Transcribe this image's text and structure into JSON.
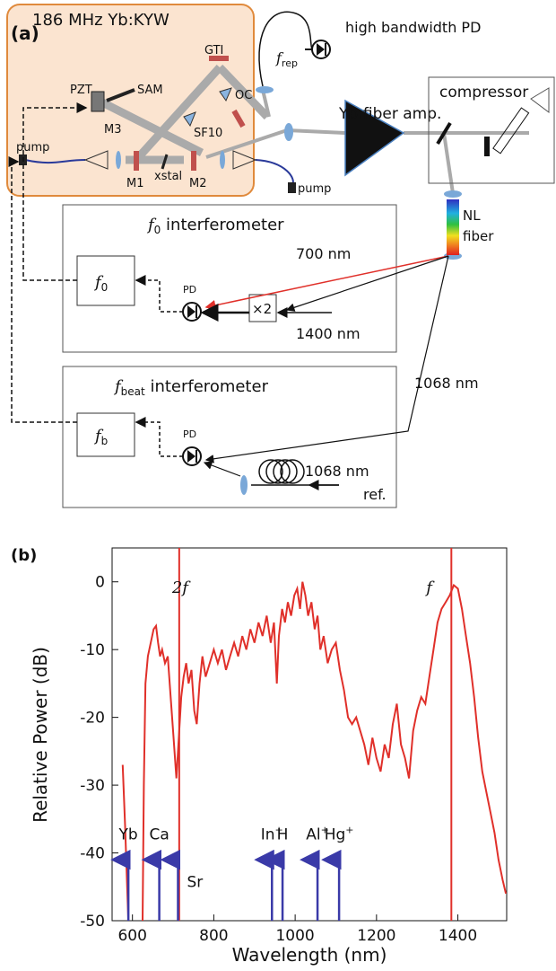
{
  "diagram": {
    "panel_label": "(a)",
    "laser": "186 MHz Yb:KYW",
    "pd_label": "high bandwidth PD",
    "frep": {
      "symbol": "f",
      "sub": "rep"
    },
    "components": {
      "pzt": "PZT",
      "sam": "SAM",
      "m3": "M3",
      "gti": "GTI",
      "oc": "OC",
      "sf10": "SF10",
      "m1": "M1",
      "m2": "M2",
      "xstal": "xstal",
      "pump_left": "pump",
      "pump_right": "pump"
    },
    "amplifier": "Yb:fiber amp.",
    "compressor": "compressor",
    "nl_fiber": [
      "NL",
      "fiber"
    ],
    "f0_interferometer": {
      "title_symbol": "f",
      "title_sub": "0",
      "title_rest": " interferometer",
      "box_symbol": "f",
      "box_sub": "0",
      "pd": "PD",
      "red_beam": "700 nm",
      "black_beam": "1400 nm",
      "doubler": "×2"
    },
    "fbeat_interferometer": {
      "title_symbol": "f",
      "title_sub": "beat",
      "title_rest": " interferometer",
      "box_symbol": "f",
      "box_sub": "b",
      "pd": "PD",
      "beam": "1068 nm",
      "ref": [
        "1068 nm",
        "ref."
      ]
    }
  },
  "chart_data": {
    "type": "line",
    "panel_label": "(b)",
    "xlabel": "Wavelength (nm)",
    "ylabel": "Relative Power (dB)",
    "color": "#e0302a",
    "xlim": [
      550,
      1520
    ],
    "ylim": [
      -50,
      5
    ],
    "xticks": [
      600,
      800,
      1000,
      1200,
      1400
    ],
    "yticks": [
      0,
      -10,
      -20,
      -30,
      -40,
      -50
    ],
    "x": [
      576,
      582,
      587,
      590,
      605,
      625,
      628,
      632,
      638,
      645,
      652,
      658,
      663,
      668,
      673,
      680,
      687,
      694,
      700,
      708,
      714,
      720,
      726,
      732,
      738,
      745,
      752,
      758,
      765,
      772,
      780,
      790,
      800,
      810,
      820,
      830,
      840,
      850,
      860,
      870,
      880,
      890,
      900,
      910,
      920,
      930,
      940,
      948,
      955,
      960,
      968,
      975,
      982,
      990,
      998,
      1005,
      1012,
      1018,
      1025,
      1032,
      1040,
      1048,
      1055,
      1062,
      1070,
      1080,
      1090,
      1100,
      1110,
      1120,
      1130,
      1140,
      1150,
      1160,
      1170,
      1180,
      1190,
      1200,
      1210,
      1220,
      1230,
      1240,
      1250,
      1260,
      1270,
      1280,
      1290,
      1300,
      1310,
      1320,
      1330,
      1340,
      1350,
      1360,
      1370,
      1380,
      1390,
      1400,
      1410,
      1420,
      1430,
      1440,
      1450,
      1460,
      1470,
      1480,
      1490,
      1500,
      1510,
      1518
    ],
    "values": [
      -27,
      -36,
      -45,
      -50,
      null,
      -50,
      -30,
      -15,
      -11,
      -9,
      -7,
      -6.5,
      -9,
      -11,
      -10,
      -12,
      -11,
      -17,
      -22,
      -29,
      -23,
      -17,
      -14,
      -12,
      -15,
      -13,
      -19,
      -21,
      -15,
      -11,
      -14,
      -12,
      -10,
      -12,
      -10,
      -13,
      -11,
      -9,
      -11,
      -8,
      -10,
      -7,
      -9,
      -6,
      -8,
      -5,
      -9,
      -6,
      -15,
      -8,
      -4,
      -6,
      -3,
      -5,
      -2,
      -1,
      -4,
      0,
      -2,
      -5,
      -3,
      -7,
      -5,
      -10,
      -8,
      -12,
      -10,
      -9,
      -13,
      -16,
      -20,
      -21,
      -20,
      -22,
      -24,
      -27,
      -23,
      -26,
      -28,
      -24,
      -26,
      -21,
      -18,
      -24,
      -26,
      -29,
      -22,
      -19,
      -17,
      -18,
      -14,
      -10,
      -6,
      -4,
      -3,
      -2,
      -0.5,
      -1,
      -4,
      -8,
      -12,
      -17,
      -23,
      -28,
      -31,
      -34,
      -37,
      -41,
      -44,
      -46
    ],
    "lines": [
      {
        "label": "2f",
        "x": 715
      },
      {
        "label": "f",
        "x": 1384
      }
    ],
    "lines_color": "#e0302a",
    "markers": [
      {
        "label": "Yb",
        "x": 590
      },
      {
        "label": "Ca",
        "x": 666
      },
      {
        "label": "Sr",
        "x": 712
      },
      {
        "label": "In",
        "sup": "+",
        "x": 943
      },
      {
        "label": "H",
        "x": 969
      },
      {
        "label": "Al",
        "sup": "+",
        "x": 1055
      },
      {
        "label": "Hg",
        "sup": "+",
        "x": 1108
      }
    ],
    "markers_color": "#3a3aa8"
  }
}
